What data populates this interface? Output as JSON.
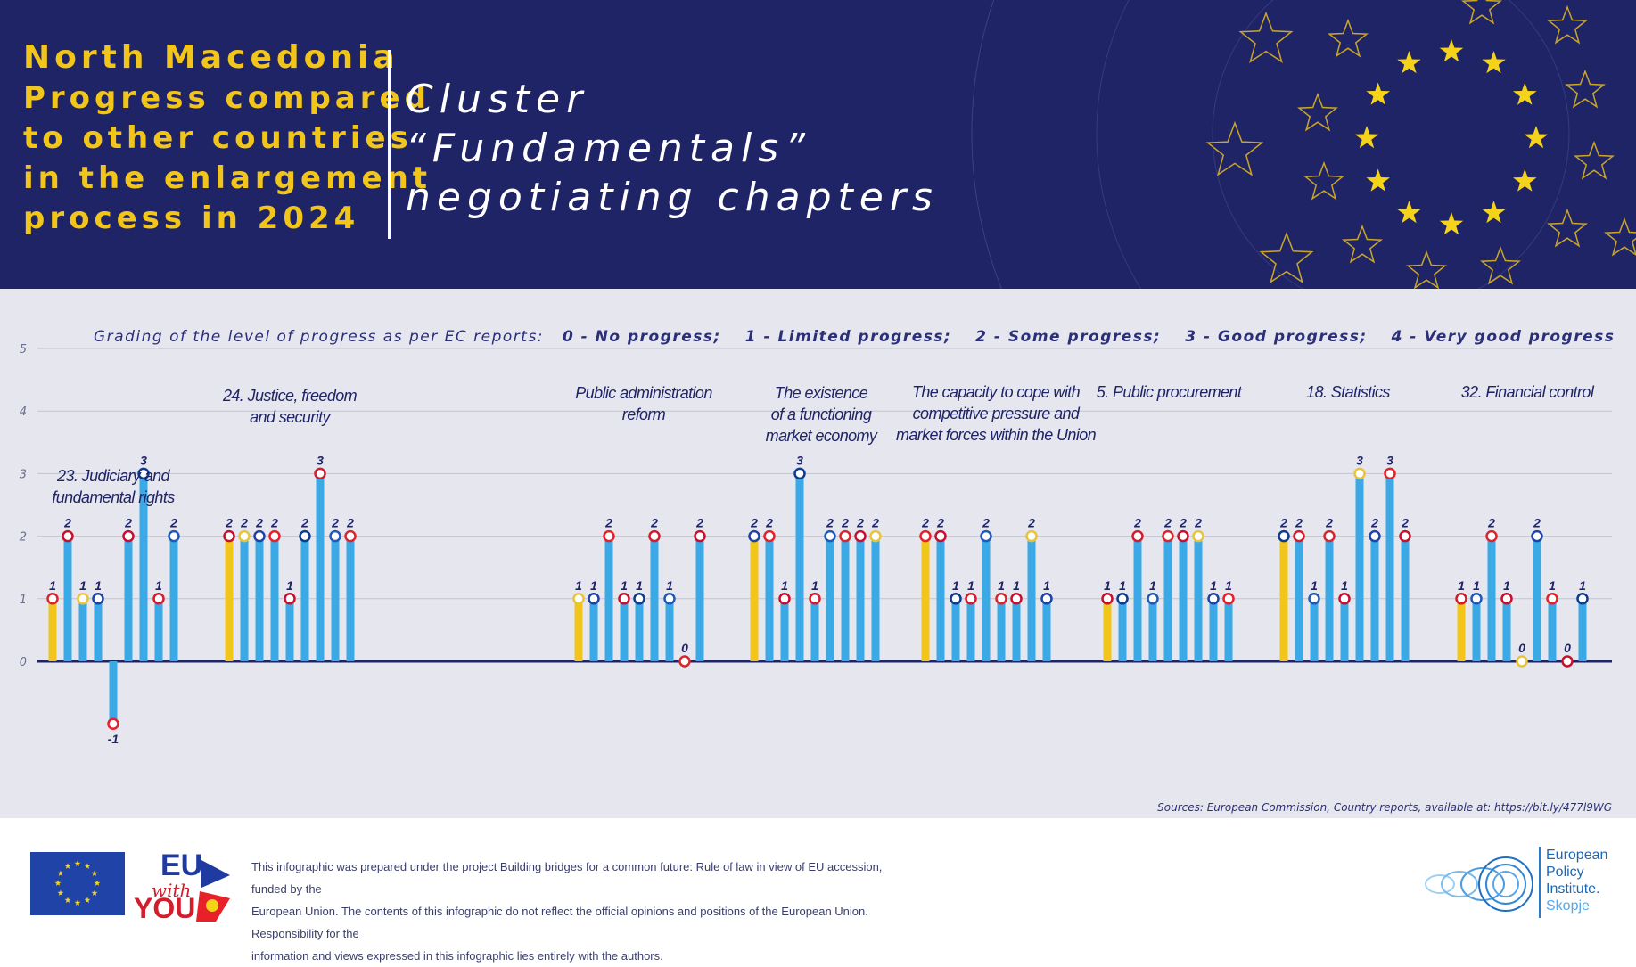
{
  "header": {
    "country": "North Macedonia",
    "subtitle_lines": [
      "Progress compared",
      "to other countries",
      "in the enlargement",
      "process in 2024"
    ],
    "title_lines": [
      "Cluster",
      "“Fundamentals”",
      "negotiating chapters"
    ]
  },
  "legend": {
    "intro": "Grading of the level of progress as per EC reports:",
    "grades": [
      "0 - No progress;",
      "1 - Limited progress;",
      "2 - Some progress;",
      "3 - Good progress;",
      "4 - Very good progress"
    ]
  },
  "source": "Sources: European Commission, Country reports, available at: https://bit.ly/477l9WG",
  "footer": {
    "disclaimer_lines": [
      "This infographic was prepared under the project Building bridges for a common future: Rule of law in view of EU accession, funded by the",
      "European Union. The contents of this infographic do not reflect the official opinions and positions of the European Union. Responsibility for the",
      "information and views expressed in this infographic lies entirely with the authors."
    ],
    "eu_with_you": {
      "eu": "EU",
      "with": "with",
      "you": "YOU"
    },
    "institute_lines": [
      "European",
      "Policy",
      "Institute.",
      "Skopje"
    ]
  },
  "colors": {
    "header_bg": "#1f2466",
    "header_accent": "#f2c51b",
    "bar_north_macedonia": "#f2c51b",
    "bar_other_countries": "#3ba9e6",
    "axis": "#1f2466",
    "plot_bg": "#e6e6ee"
  },
  "chart_data": {
    "type": "bar",
    "ylim": [
      0,
      5
    ],
    "y_ticks": [
      "0",
      "1",
      "2",
      "3",
      "4",
      "5"
    ],
    "grid": true,
    "groups": [
      {
        "label_lines": [
          "23. Judiciary and",
          "fundamental rights"
        ],
        "values": [
          1,
          2,
          1,
          1,
          -1,
          2,
          3,
          1,
          2
        ],
        "value_labels": [
          "1",
          "2",
          "1",
          "1",
          "-1",
          "2",
          "3",
          "1",
          "2"
        ]
      },
      {
        "label_lines": [
          "24. Justice, freedom",
          "and security"
        ],
        "values": [
          2,
          2,
          2,
          2,
          1,
          2,
          3,
          2,
          2
        ],
        "value_labels": [
          "2",
          "2",
          "2",
          "2",
          "1",
          "2",
          "3",
          "2",
          "2"
        ]
      },
      {
        "label_lines": [
          "Public administration",
          "reform"
        ],
        "values": [
          1,
          1,
          2,
          1,
          1,
          2,
          1,
          0,
          2
        ],
        "value_labels": [
          "1",
          "1",
          "2",
          "1",
          "1",
          "2",
          "1",
          "0",
          "2"
        ]
      },
      {
        "label_lines": [
          "The existence",
          "of a functioning",
          "market economy"
        ],
        "values": [
          2,
          2,
          1,
          3,
          1,
          2,
          2,
          2,
          2
        ],
        "value_labels": [
          "2",
          "2",
          "1",
          "3",
          "1",
          "2",
          "2",
          "2",
          "2"
        ]
      },
      {
        "label_lines": [
          "The capacity to cope with",
          "competitive pressure and",
          "market forces within the Union"
        ],
        "values": [
          2,
          2,
          1,
          1,
          2,
          1,
          1,
          2,
          1
        ],
        "value_labels": [
          "2",
          "2",
          "1",
          "1",
          "2",
          "1",
          "1",
          "2",
          "1"
        ]
      },
      {
        "label_lines": [
          "5. Public procurement"
        ],
        "values": [
          1,
          1,
          2,
          1,
          2,
          2,
          2,
          1,
          1
        ],
        "value_labels": [
          "1",
          "1",
          "2",
          "1",
          "2",
          "2",
          "2",
          "1",
          "1"
        ]
      },
      {
        "label_lines": [
          "18. Statistics"
        ],
        "values": [
          2,
          2,
          1,
          2,
          1,
          3,
          2,
          3,
          2
        ],
        "value_labels": [
          "2",
          "2",
          "1",
          "2",
          "1",
          "3",
          "2",
          "3",
          "2"
        ]
      },
      {
        "label_lines": [
          "32. Financial control"
        ],
        "values": [
          1,
          1,
          2,
          1,
          0,
          2,
          1,
          0,
          1
        ],
        "value_labels": [
          "1",
          "1",
          "2",
          "1",
          "0",
          "2",
          "1",
          "0",
          "1"
        ]
      }
    ]
  }
}
